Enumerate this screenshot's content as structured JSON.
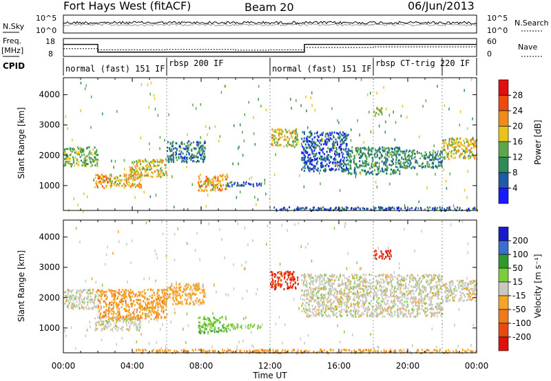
{
  "header": {
    "title": "Fort Hays West (fitACF)",
    "beam": "Beam 20",
    "date": "06/Jun/2013"
  },
  "noise_panel": {
    "left_label": "N.Sky",
    "left_ticks": [
      "10^5",
      "10^0"
    ],
    "right_label": "N.Search",
    "right_ticks": [
      "10^5",
      "10^0"
    ]
  },
  "freq_panel": {
    "left_label_line1": "Freq.",
    "left_label_line2": "[MHz]",
    "left_ticks": [
      "18",
      "8"
    ],
    "right_label": "Nave",
    "right_ticks": [
      "60",
      "0"
    ],
    "freq_steps": [
      {
        "start_h": 0.0,
        "end_h": 2.0,
        "mhz": 14.7
      },
      {
        "start_h": 2.0,
        "end_h": 14.0,
        "mhz": 10.4
      },
      {
        "start_h": 14.0,
        "end_h": 24.0,
        "mhz": 14.7
      }
    ],
    "nave_steps": [
      {
        "start_h": 0.0,
        "end_h": 2.0,
        "nave": 26
      },
      {
        "start_h": 2.0,
        "end_h": 6.0,
        "nave": 22
      },
      {
        "start_h": 6.0,
        "end_h": 10.0,
        "nave": 23
      },
      {
        "start_h": 10.0,
        "end_h": 12.0,
        "nave": 21
      },
      {
        "start_h": 12.0,
        "end_h": 14.0,
        "nave": 22
      },
      {
        "start_h": 14.0,
        "end_h": 18.0,
        "nave": 30
      },
      {
        "start_h": 18.0,
        "end_h": 24.0,
        "nave": 32
      }
    ]
  },
  "cpid": {
    "label": "CPID",
    "segments": [
      {
        "start_h": 0.0,
        "end_h": 6.0,
        "label": "normal (fast) 151 IF"
      },
      {
        "start_h": 6.0,
        "end_h": 12.0,
        "label": "rbsp 200 IF"
      },
      {
        "start_h": 12.0,
        "end_h": 18.0,
        "label": "normal (fast) 151 IF"
      },
      {
        "start_h": 18.0,
        "end_h": 22.0,
        "label": "rbsp CT-trig 220 IF"
      },
      {
        "start_h": 22.0,
        "end_h": 24.0,
        "label": ""
      }
    ]
  },
  "axes": {
    "ylabel": "Slant Range [km]",
    "xlabel": "Time UT",
    "x_ticks": [
      "00:00",
      "04:00",
      "08:00",
      "12:00",
      "16:00",
      "20:00",
      "00:00"
    ],
    "y_ticks": [
      "1000",
      "2000",
      "3000",
      "4000"
    ],
    "xlim_hours": [
      0,
      24
    ],
    "ylim_km": [
      180,
      4560
    ]
  },
  "colorbars": {
    "power": {
      "label": "Power [dB]",
      "ticks": [
        "4",
        "8",
        "12",
        "16",
        "20",
        "24",
        "28"
      ],
      "colors": [
        "#1a1aff",
        "#1e5aa8",
        "#2e8b57",
        "#5aa84a",
        "#e8c41a",
        "#f08a1a",
        "#ee4a10",
        "#e01010"
      ]
    },
    "velocity": {
      "label": "Velocity [m s⁻¹]",
      "ticks": [
        "200",
        "100",
        "50",
        "15",
        "-15",
        "-50",
        "-100",
        "-200"
      ],
      "colors": [
        "#1a1acc",
        "#3a6fd0",
        "#2e9a2e",
        "#7ccd3a",
        "#c8c8c0",
        "#f4a428",
        "#f07a1a",
        "#e84a12",
        "#e01010"
      ]
    }
  },
  "chart_data": [
    {
      "type": "heatmap",
      "title": "Power [dB]",
      "xlabel": "Time UT",
      "ylabel": "Slant Range [km]",
      "x_unit": "hours UT",
      "ylim": [
        180,
        4560
      ],
      "regions": [
        {
          "hours": [
            0.0,
            2.0
          ],
          "range_km": [
            1650,
            2300
          ],
          "power_db": 14
        },
        {
          "hours": [
            1.8,
            4.5
          ],
          "range_km": [
            950,
            1400
          ],
          "power_db": 20
        },
        {
          "hours": [
            3.8,
            6.0
          ],
          "range_km": [
            1300,
            1900
          ],
          "power_db": 18
        },
        {
          "hours": [
            6.0,
            8.2
          ],
          "range_km": [
            1800,
            2500
          ],
          "power_db": 8
        },
        {
          "hours": [
            7.8,
            9.5
          ],
          "range_km": [
            850,
            1400
          ],
          "power_db": 20
        },
        {
          "hours": [
            9.5,
            11.5
          ],
          "range_km": [
            1000,
            1150
          ],
          "power_db": 6
        },
        {
          "hours": [
            12.0,
            13.6
          ],
          "range_km": [
            2300,
            2900
          ],
          "power_db": 18
        },
        {
          "hours": [
            13.8,
            16.5
          ],
          "range_km": [
            1500,
            2800
          ],
          "power_db": 6
        },
        {
          "hours": [
            16.5,
            19.5
          ],
          "range_km": [
            1400,
            2300
          ],
          "power_db": 10
        },
        {
          "hours": [
            18.0,
            18.5
          ],
          "range_km": [
            3300,
            3600
          ],
          "power_db": 16
        },
        {
          "hours": [
            19.5,
            22.0
          ],
          "range_km": [
            1600,
            2200
          ],
          "power_db": 10
        },
        {
          "hours": [
            22.0,
            24.0
          ],
          "range_km": [
            1900,
            2600
          ],
          "power_db": 18
        },
        {
          "hours": [
            12.0,
            24.0
          ],
          "range_km": [
            200,
            320
          ],
          "power_db": 6
        }
      ]
    },
    {
      "type": "heatmap",
      "title": "Velocity [m s⁻¹]",
      "xlabel": "Time UT",
      "ylabel": "Slant Range [km]",
      "x_unit": "hours UT",
      "ylim": [
        180,
        4560
      ],
      "regions": [
        {
          "hours": [
            0.0,
            2.0
          ],
          "range_km": [
            1650,
            2300
          ],
          "velocity_ms": 0
        },
        {
          "hours": [
            1.8,
            4.5
          ],
          "range_km": [
            950,
            1400
          ],
          "velocity_ms": 0
        },
        {
          "hours": [
            2.0,
            6.0
          ],
          "range_km": [
            1300,
            2300
          ],
          "velocity_ms": -40
        },
        {
          "hours": [
            6.0,
            8.2
          ],
          "range_km": [
            1800,
            2500
          ],
          "velocity_ms": -30
        },
        {
          "hours": [
            7.8,
            9.5
          ],
          "range_km": [
            850,
            1400
          ],
          "velocity_ms": 40
        },
        {
          "hours": [
            9.5,
            11.5
          ],
          "range_km": [
            1000,
            1150
          ],
          "velocity_ms": 30
        },
        {
          "hours": [
            12.0,
            13.6
          ],
          "range_km": [
            2300,
            2900
          ],
          "velocity_ms": -200
        },
        {
          "hours": [
            13.8,
            22.0
          ],
          "range_km": [
            1400,
            2800
          ],
          "velocity_ms": 0
        },
        {
          "hours": [
            18.0,
            19.0
          ],
          "range_km": [
            3300,
            3600
          ],
          "velocity_ms": -200
        },
        {
          "hours": [
            22.0,
            24.0
          ],
          "range_km": [
            1900,
            2600
          ],
          "velocity_ms": 0
        },
        {
          "hours": [
            4.0,
            24.0
          ],
          "range_km": [
            200,
            320
          ],
          "velocity_ms": -40
        }
      ]
    }
  ]
}
